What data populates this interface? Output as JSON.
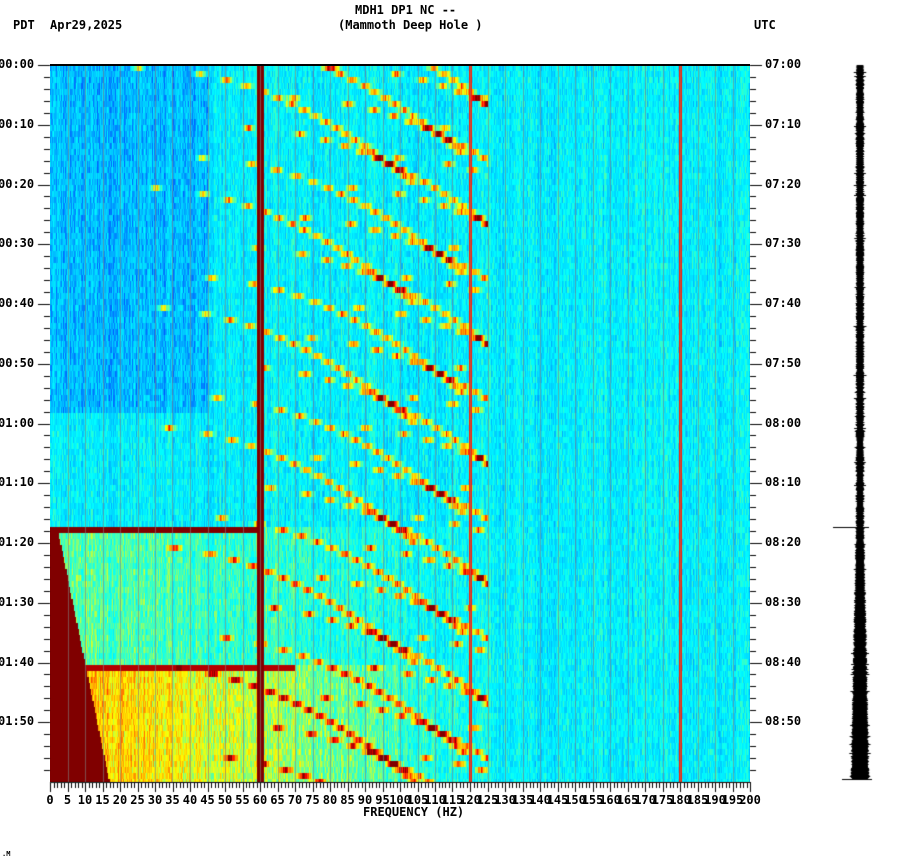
{
  "header": {
    "title_line1": "MDH1 DP1 NC --",
    "title_line2": "(Mammoth Deep Hole )",
    "left_timezone": "PDT",
    "date": "Apr29,2025",
    "right_timezone": "UTC"
  },
  "footer": {
    "mark": ".M"
  },
  "colors": {
    "colormap": [
      "#0000ff",
      "#0064ff",
      "#00c8ff",
      "#00ffff",
      "#64ff96",
      "#ffff00",
      "#ff9600",
      "#ff0000",
      "#800000"
    ],
    "background": "#ffffff",
    "axis": "#000000",
    "gridline": "#808080",
    "saturated": "#800000"
  },
  "chart_data": {
    "type": "heatmap",
    "title": "MDH1 DP1 NC -- (Mammoth Deep Hole )",
    "subtitle": "Apr29,2025",
    "xlabel": "FREQUENCY (HZ)",
    "ylabel_left": "PDT",
    "ylabel_right": "UTC",
    "xlim": [
      0,
      200
    ],
    "x_ticks": [
      0,
      5,
      10,
      15,
      20,
      25,
      30,
      35,
      40,
      45,
      50,
      55,
      60,
      65,
      70,
      75,
      80,
      85,
      90,
      95,
      100,
      105,
      110,
      115,
      120,
      125,
      130,
      135,
      140,
      145,
      150,
      155,
      160,
      165,
      170,
      175,
      180,
      185,
      190,
      195,
      200
    ],
    "x_tick_labels": [
      "0",
      "5",
      "10",
      "15",
      "20",
      "25",
      "30",
      "35",
      "40",
      "45",
      "50",
      "55",
      "60",
      "65",
      "70",
      "75",
      "80",
      "85",
      "90",
      "95",
      "100",
      "105",
      "110",
      "115",
      "120",
      "125",
      "130",
      "135",
      "140",
      "145",
      "150",
      "155",
      "160",
      "165",
      "170",
      "175",
      "180",
      "185",
      "190",
      "195",
      "200"
    ],
    "y_tick_labels_left": [
      "00:00",
      "00:10",
      "00:20",
      "00:30",
      "00:40",
      "00:50",
      "01:00",
      "01:10",
      "01:20",
      "01:30",
      "01:40",
      "01:50"
    ],
    "y_tick_labels_right": [
      "07:00",
      "07:10",
      "07:20",
      "07:30",
      "07:40",
      "07:50",
      "08:00",
      "08:10",
      "08:20",
      "08:30",
      "08:40",
      "08:50"
    ],
    "time_span_minutes": 120,
    "minor_tick_minutes": 2,
    "persistent_lines_hz": [
      60,
      120,
      180
    ],
    "strong_line_hz": 60,
    "broadband_events_pdt": [
      "01:17",
      "01:40",
      "02:00"
    ],
    "seismogram_marker_pdt": "01:17",
    "description": "Seismic spectrogram: blue/cyan background, curved yellow-red gliding harmonic arcs repeating every ~20 minutes between 20-120 Hz, strong 60 Hz line, energy increasing sharply after 01:17 and 01:40 PDT",
    "grid": false,
    "legend": null
  }
}
